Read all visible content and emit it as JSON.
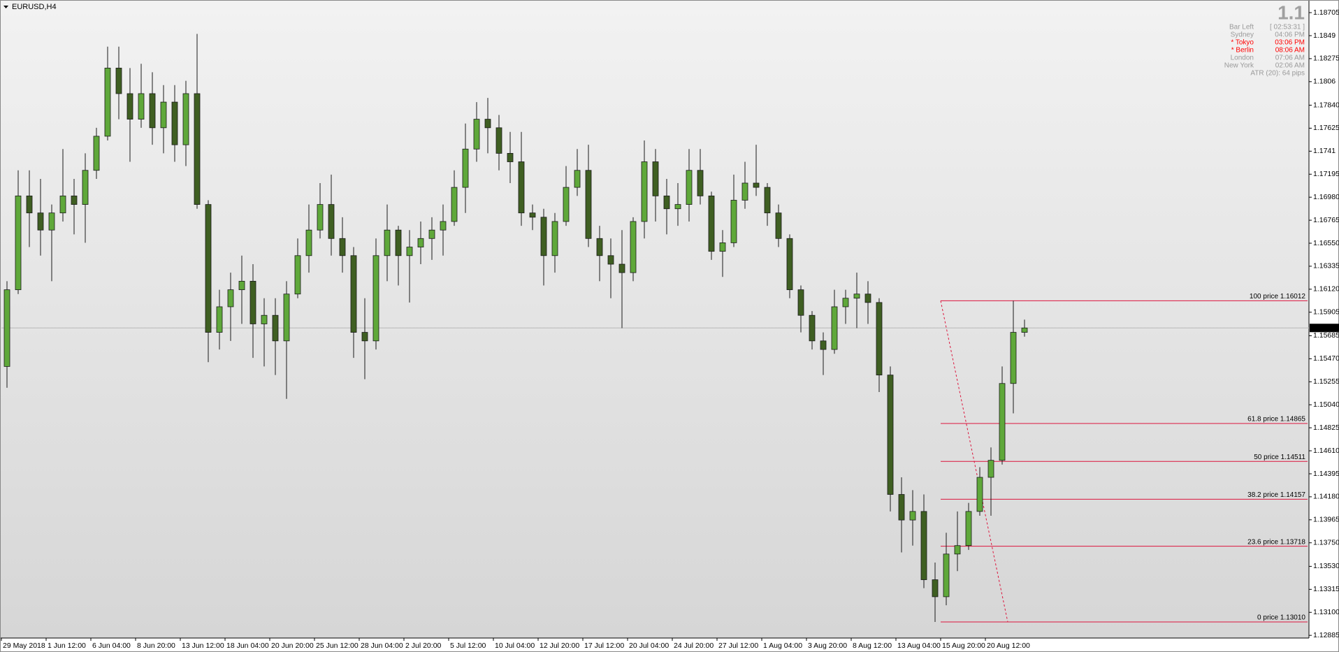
{
  "chart_data": {
    "type": "candlestick",
    "title": "EURUSD,H4",
    "up_color": "#5fa83a",
    "down_color": "#3f5f22",
    "wick_color": "#1a1a1a",
    "grid": false,
    "categories": [
      "29 May 2018",
      null,
      null,
      null,
      "1 Jun 12:00",
      null,
      null,
      null,
      "6 Jun 04:00",
      null,
      null,
      null,
      "8 Jun 20:00",
      null,
      null,
      null,
      "13 Jun 12:00",
      null,
      null,
      null,
      "18 Jun 04:00",
      null,
      null,
      null,
      "20 Jun 20:00",
      null,
      null,
      null,
      "25 Jun 12:00",
      null,
      null,
      null,
      "28 Jun 04:00",
      null,
      null,
      null,
      "2 Jul 20:00",
      null,
      null,
      null,
      "5 Jul 12:00",
      null,
      null,
      null,
      "10 Jul 04:00",
      null,
      null,
      null,
      "12 Jul 20:00",
      null,
      null,
      null,
      "17 Jul 12:00",
      null,
      null,
      null,
      "20 Jul 04:00",
      null,
      null,
      null,
      "24 Jul 20:00",
      null,
      null,
      null,
      "27 Jul 12:00",
      null,
      null,
      null,
      "1 Aug 04:00",
      null,
      null,
      null,
      "3 Aug 20:00",
      null,
      null,
      null,
      "8 Aug 12:00",
      null,
      null,
      null,
      "13 Aug 04:00",
      null,
      null,
      null,
      "15 Aug 20:00",
      null,
      null,
      null,
      "20 Aug 12:00",
      null,
      null,
      null
    ],
    "open": [
      1.15398,
      1.16115,
      1.16992,
      1.16833,
      1.16673,
      1.16833,
      1.16992,
      1.16912,
      1.17231,
      1.1755,
      1.18187,
      1.17948,
      1.17709,
      1.17948,
      1.17629,
      1.17869,
      1.1747,
      1.17948,
      1.16912,
      1.15717,
      1.15956,
      1.16115,
      1.16195,
      1.15796,
      1.15876,
      1.15637,
      1.16075,
      1.16434,
      1.16673,
      1.16912,
      1.16594,
      1.16434,
      1.15717,
      1.15637,
      1.16434,
      1.16673,
      1.16434,
      1.16514,
      1.16594,
      1.16673,
      1.16753,
      1.17072,
      1.1743,
      1.17709,
      1.17629,
      1.1739,
      1.17311,
      1.16833,
      1.16793,
      1.16434,
      1.16753,
      1.17072,
      1.17231,
      1.16594,
      1.16434,
      1.16354,
      1.16275,
      1.16753,
      1.17311,
      1.16992,
      1.16872,
      1.16912,
      1.17231,
      1.16992,
      1.16474,
      1.16554,
      1.16952,
      1.17112,
      1.17072,
      1.16833,
      1.16594,
      1.16115,
      1.15876,
      1.15637,
      1.15557,
      1.15956,
      1.16036,
      1.16075,
      1.15996,
      1.15318,
      1.14202,
      1.13963,
      1.14043,
      1.13405,
      1.13246,
      1.13645,
      1.13724,
      1.14043,
      1.14362,
      1.14521,
      1.15239,
      1.15717
    ],
    "high": [
      1.16195,
      1.17231,
      1.17231,
      1.17151,
      1.16912,
      1.1743,
      1.17151,
      1.1739,
      1.17629,
      1.18387,
      1.18387,
      1.18187,
      1.18227,
      1.18148,
      1.18028,
      1.18028,
      1.18068,
      1.18506,
      1.16952,
      1.16115,
      1.16275,
      1.16434,
      1.16354,
      1.16036,
      1.16036,
      1.16195,
      1.16594,
      1.16912,
      1.17112,
      1.17191,
      1.16793,
      1.16514,
      1.16036,
      1.16594,
      1.16912,
      1.16713,
      1.16673,
      1.16753,
      1.16793,
      1.16912,
      1.17231,
      1.17669,
      1.17869,
      1.17908,
      1.17749,
      1.1759,
      1.1759,
      1.16912,
      1.16872,
      1.16833,
      1.17271,
      1.1743,
      1.1747,
      1.16713,
      1.16594,
      1.16673,
      1.16793,
      1.1751,
      1.1743,
      1.17151,
      1.17112,
      1.1743,
      1.1743,
      1.17032,
      1.16673,
      1.17191,
      1.17311,
      1.1747,
      1.17112,
      1.16912,
      1.16633,
      1.16155,
      1.15916,
      1.15717,
      1.16115,
      1.16115,
      1.16275,
      1.16195,
      1.16036,
      1.15398,
      1.14362,
      1.14242,
      1.14202,
      1.13565,
      1.13844,
      1.14043,
      1.14123,
      1.14457,
      1.14641,
      1.15398,
      1.16012,
      1.15836
    ],
    "low": [
      1.15199,
      1.16075,
      1.16514,
      1.16434,
      1.16195,
      1.16753,
      1.16633,
      1.16554,
      1.17151,
      1.1751,
      1.17709,
      1.17311,
      1.17629,
      1.1747,
      1.1739,
      1.17311,
      1.17271,
      1.16872,
      1.15438,
      1.15557,
      1.15637,
      1.15796,
      1.15478,
      1.15398,
      1.15318,
      1.15095,
      1.16036,
      1.16275,
      1.16594,
      1.16434,
      1.16275,
      1.15478,
      1.15279,
      1.15557,
      1.16195,
      1.16155,
      1.15996,
      1.16354,
      1.16394,
      1.16434,
      1.16713,
      1.16833,
      1.17311,
      1.1739,
      1.17231,
      1.17112,
      1.16713,
      1.16673,
      1.16155,
      1.16275,
      1.16713,
      1.16992,
      1.16514,
      1.16195,
      1.16036,
      1.15757,
      1.16195,
      1.16594,
      1.16753,
      1.16633,
      1.16713,
      1.16753,
      1.16912,
      1.16394,
      1.16235,
      1.16514,
      1.16872,
      1.16992,
      1.16713,
      1.16514,
      1.16036,
      1.15717,
      1.15557,
      1.15318,
      1.15517,
      1.15796,
      1.15757,
      1.15796,
      1.15159,
      1.14043,
      1.1366,
      1.13724,
      1.13326,
      1.1301,
      1.13166,
      1.13485,
      1.13684,
      1.14003,
      1.14003,
      1.14481,
      1.1496,
      1.15677
    ],
    "close": [
      1.16115,
      1.16992,
      1.16833,
      1.16673,
      1.16833,
      1.16992,
      1.16912,
      1.17231,
      1.1755,
      1.18187,
      1.17948,
      1.17709,
      1.17948,
      1.17629,
      1.17869,
      1.1747,
      1.17948,
      1.16912,
      1.15717,
      1.15956,
      1.16115,
      1.16195,
      1.15796,
      1.15876,
      1.15637,
      1.16075,
      1.16434,
      1.16673,
      1.16912,
      1.16594,
      1.16434,
      1.15717,
      1.15637,
      1.16434,
      1.16673,
      1.16434,
      1.16514,
      1.16594,
      1.16673,
      1.16753,
      1.17072,
      1.1743,
      1.17709,
      1.17629,
      1.1739,
      1.17311,
      1.16833,
      1.16793,
      1.16434,
      1.16753,
      1.17072,
      1.17231,
      1.16594,
      1.16434,
      1.16354,
      1.16275,
      1.16753,
      1.17311,
      1.16992,
      1.16872,
      1.16912,
      1.17231,
      1.16992,
      1.16474,
      1.16554,
      1.16952,
      1.17112,
      1.17072,
      1.16833,
      1.16594,
      1.16115,
      1.15876,
      1.15637,
      1.15557,
      1.15956,
      1.16036,
      1.16075,
      1.15996,
      1.15318,
      1.14202,
      1.13963,
      1.14043,
      1.13405,
      1.13246,
      1.13645,
      1.13724,
      1.14043,
      1.14362,
      1.14521,
      1.15239,
      1.15717,
      1.15758
    ],
    "ylim": [
      1.1286,
      1.1881
    ],
    "yticks": [
      1.18705,
      1.1849,
      1.18275,
      1.1806,
      {
        "value": 1.1784,
        "label": "1.17840"
      },
      1.17625,
      1.1741,
      1.17195,
      {
        "value": 1.1698,
        "label": "1.16980"
      },
      1.16765,
      {
        "value": 1.1655,
        "label": "1.16550"
      },
      1.16335,
      {
        "value": 1.1612,
        "label": "1.16120"
      },
      1.15905,
      1.15685,
      {
        "value": 1.1547,
        "label": "1.15470"
      },
      1.15255,
      {
        "value": 1.1504,
        "label": "1.15040"
      },
      1.14825,
      {
        "value": 1.1461,
        "label": "1.14610"
      },
      1.14395,
      {
        "value": 1.1418,
        "label": "1.14180"
      },
      1.13965,
      {
        "value": 1.1375,
        "label": "1.13750"
      },
      {
        "value": 1.1353,
        "label": "1.13530"
      },
      1.13315,
      {
        "value": 1.131,
        "label": "1.13100"
      },
      1.12885
    ],
    "current_price": 1.15758,
    "fibonacci": {
      "color": "#dc143c",
      "levels": [
        {
          "label": "100 price 1.16012",
          "value": 1.16012
        },
        {
          "label": "61.8 price 1.14865",
          "value": 1.14865
        },
        {
          "label": "50 price 1.14511",
          "value": 1.14511
        },
        {
          "label": "38.2 price 1.14157",
          "value": 1.14157
        },
        {
          "label": "23.6 price 1.13718",
          "value": 1.13718
        },
        {
          "label": "0 price 1.13010",
          "value": 1.1301
        }
      ]
    },
    "info_panel": {
      "spread": 1.1,
      "rows": [
        {
          "label": "Bar Left",
          "value": "[ 02:53:31 ]",
          "color": "#9a9a9a"
        },
        {
          "label": "Sydney",
          "value": "04:06 PM",
          "color": "#9a9a9a"
        },
        {
          "label": "* Tokyo",
          "value": "03:06 PM",
          "color": "#ff0000"
        },
        {
          "label": "* Berlin",
          "value": "08:06 AM",
          "color": "#ff0000"
        },
        {
          "label": "London",
          "value": "07:06 AM",
          "color": "#9a9a9a"
        },
        {
          "label": "New York",
          "value": "02:06 AM",
          "color": "#9a9a9a"
        }
      ],
      "atr": "ATR (20): 64 pips"
    }
  }
}
